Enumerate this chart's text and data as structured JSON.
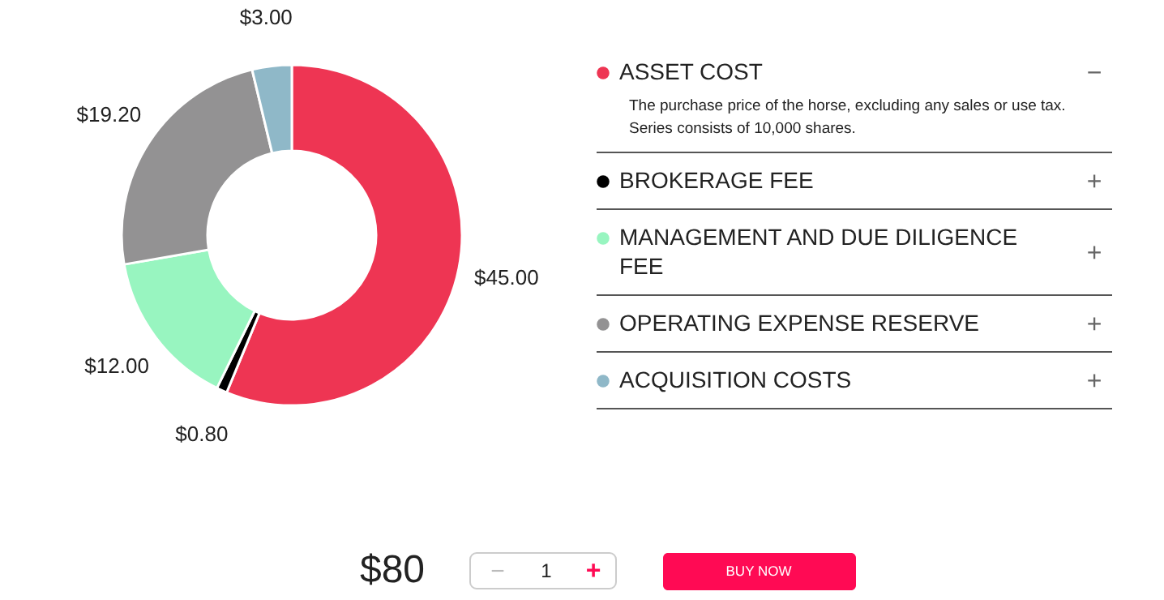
{
  "chart_data": {
    "type": "donut",
    "categories": [
      "ASSET COST",
      "BROKERAGE FEE",
      "MANAGEMENT AND DUE DILIGENCE FEE",
      "OPERATING EXPENSE RESERVE",
      "ACQUISITION COSTS"
    ],
    "values": [
      45,
      0.8,
      12,
      19.2,
      3
    ],
    "colors": [
      "#ee3553",
      "#000000",
      "#98f5c0",
      "#939293",
      "#8fb8c8"
    ],
    "value_labels": [
      "$45.00",
      "$0.80",
      "$12.00",
      "$19.20",
      "$3.00"
    ],
    "legend": "right",
    "annotations": [
      "The purchase price of the horse, excluding any sales or use tax.",
      "Series consists of 10,000 shares.",
      "−",
      "+",
      "+",
      "+",
      "+",
      "$80",
      "−",
      "1",
      "+",
      "BUY NOW"
    ]
  }
}
